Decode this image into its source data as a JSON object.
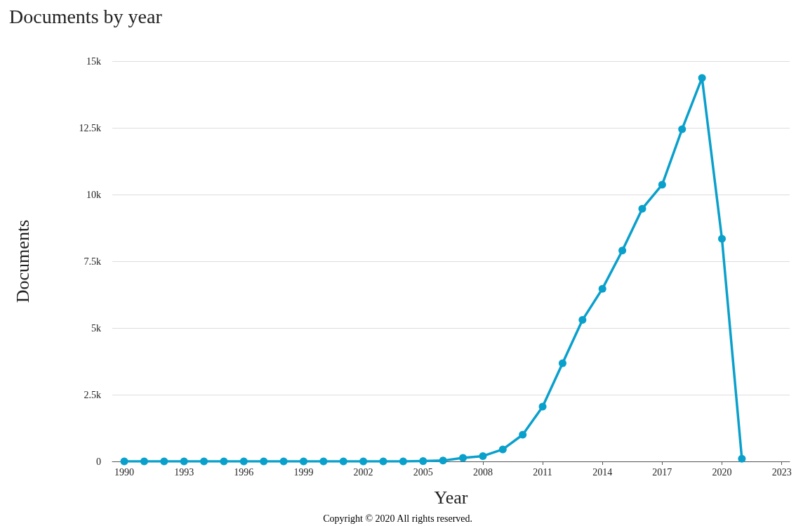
{
  "chart_data": {
    "type": "line",
    "title": "Documents by year",
    "xlabel": "Year",
    "ylabel": "Documents",
    "annotations": [
      "Copyright © 2020 All rights reserved."
    ],
    "x": [
      1990,
      1991,
      1992,
      1993,
      1994,
      1995,
      1996,
      1997,
      1998,
      1999,
      2000,
      2001,
      2002,
      2003,
      2004,
      2005,
      2006,
      2007,
      2008,
      2009,
      2010,
      2011,
      2012,
      2013,
      2014,
      2015,
      2016,
      2017,
      2018,
      2019,
      2020,
      2021
    ],
    "series": [
      {
        "color": "#0aa0cc",
        "values": [
          0,
          0,
          0,
          0,
          0,
          0,
          0,
          0,
          0,
          0,
          0,
          0,
          0,
          0,
          0,
          10,
          30,
          130,
          200,
          450,
          1000,
          2050,
          3680,
          5300,
          6470,
          7900,
          9470,
          10370,
          12450,
          14370,
          8340,
          100
        ]
      }
    ],
    "xlim": [
      1989.4,
      2023.4
    ],
    "xticks": [
      1990,
      1993,
      1996,
      1999,
      2002,
      2005,
      2008,
      2011,
      2014,
      2017,
      2020,
      2023
    ],
    "ylim": [
      0,
      15000
    ],
    "yticks": [
      0,
      {
        "value": 2500,
        "label": "2.5k"
      },
      {
        "value": 5000,
        "label": "5k"
      },
      {
        "value": 7500,
        "label": "7.5k"
      },
      {
        "value": 10000,
        "label": "10k"
      },
      {
        "value": 12500,
        "label": "12.5k"
      },
      {
        "value": 15000,
        "label": "15k"
      }
    ],
    "grid": "y",
    "marker": "circle",
    "line_style": "solid"
  }
}
